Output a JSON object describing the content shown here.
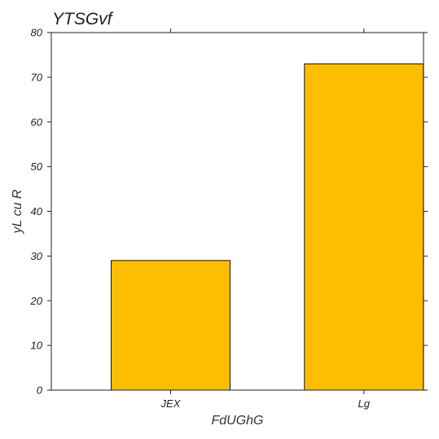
{
  "chart_data": {
    "type": "bar",
    "title": "YTSGvf",
    "xlabel": "FdUGhG",
    "ylabel": "yL cu R",
    "categories": [
      "JEX",
      "Lg"
    ],
    "values": [
      29,
      73
    ],
    "ylim": [
      0,
      80
    ],
    "yticks": [
      0,
      10,
      20,
      30,
      40,
      50,
      60,
      70,
      80
    ],
    "bar_color": "#FDBD00",
    "grid": false,
    "legend": "none"
  }
}
